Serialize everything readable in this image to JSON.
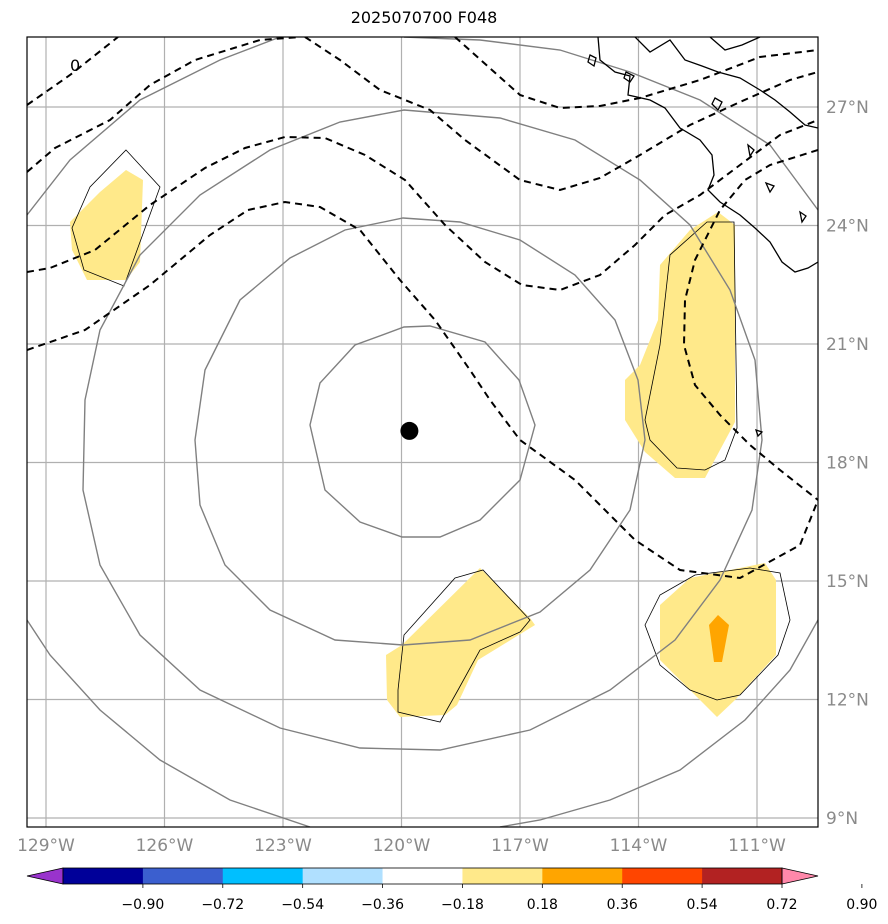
{
  "title": "2025070700 F048",
  "map": {
    "center_marker": {
      "lon": -119.8,
      "lat": 18.8
    },
    "lon_ticks": [
      {
        "lon": -129,
        "label": "129°W"
      },
      {
        "lon": -126,
        "label": "126°W"
      },
      {
        "lon": -123,
        "label": "123°W"
      },
      {
        "lon": -120,
        "label": "120°W"
      },
      {
        "lon": -117,
        "label": "117°W"
      },
      {
        "lon": -114,
        "label": "114°W"
      },
      {
        "lon": -111,
        "label": "111°W"
      }
    ],
    "lat_ticks": [
      {
        "lat": 27,
        "label": "27°N"
      },
      {
        "lat": 24,
        "label": "24°N"
      },
      {
        "lat": 21,
        "label": "21°N"
      },
      {
        "lat": 18,
        "label": "18°N"
      },
      {
        "lat": 15,
        "label": "15°N"
      },
      {
        "lat": 12,
        "label": "12°N"
      },
      {
        "lat": 9,
        "label": "9°N"
      }
    ],
    "contour_label": "0",
    "colors": {
      "fill_low": "#ffe98a",
      "fill_mid": "#ffa500",
      "dashed_contour": "#000000",
      "ring_contour": "#808080",
      "gridline": "#b0b0b0"
    }
  },
  "colorbar": {
    "colors": [
      "#9933cc",
      "#000099",
      "#3b5fcf",
      "#00bfff",
      "#b0e0ff",
      "#ffffff",
      "#ffe98a",
      "#ffa500",
      "#ff4500",
      "#b22222",
      "#ff88aa"
    ],
    "ticks": [
      "−0.90",
      "−0.72",
      "−0.54",
      "−0.36",
      "−0.18",
      "0.18",
      "0.36",
      "0.54",
      "0.72",
      "0.90"
    ]
  }
}
